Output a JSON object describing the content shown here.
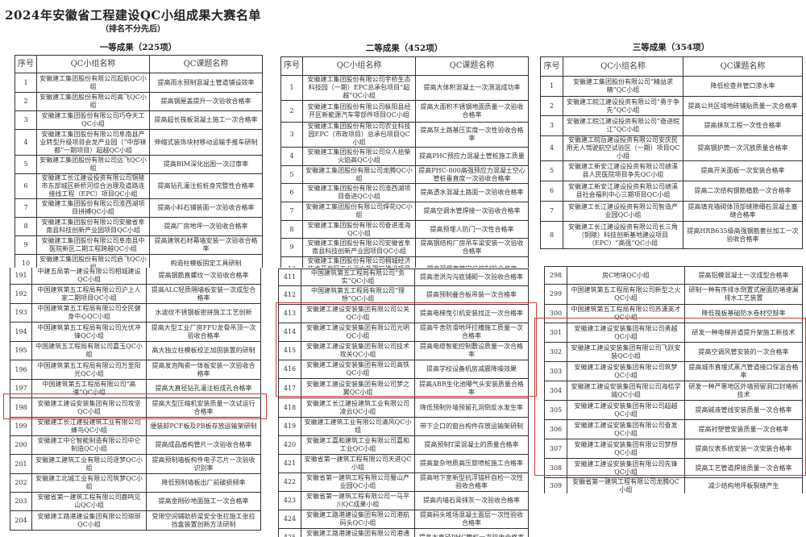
{
  "document": {
    "title": "2024年安徽省工程建设QC小组成果大赛名单",
    "subtitle": "（排名不分先后）"
  },
  "columns": {
    "index": "序号",
    "group": "QC小组名称",
    "topic": "QC课题名称"
  },
  "highlight_color": "#d23b3b",
  "first_prize": {
    "heading": "一等成果（225项）",
    "top_rows": [
      {
        "no": "1",
        "group": "安徽建工集团股份有限公司起航QC小组",
        "topic": "提高雨水预制混凝土管道铺设效率"
      },
      {
        "no": "2",
        "group": "安徽建工集团股份有限公司高飞QC小组",
        "topic": "提高钢屋盖提升一次验收合格率"
      },
      {
        "no": "3",
        "group": "安徽建工集团股份有限公司巧夺天工QC小组",
        "topic": "提高超长筏板混凝土施工一次合格率"
      },
      {
        "no": "4",
        "group": "安徽建工集团股份有限公司阜南县产业转型升级项目会龙产业园（“中部袜都”一期项目）超越QC小组",
        "topic": "伸缩式装饰块材移动运输手推车研制"
      },
      {
        "no": "5",
        "group": "安徽建工集团股份有限公司远飞QC小组",
        "topic": "提高BIM深化出图一次过审率"
      },
      {
        "no": "6",
        "group": "安徽建工长江建设投资有限公司铜陵市东部城区新桥河综合治理及道路连接线工程（EPC）项目QC小组",
        "topic": "提高钻孔灌注桩桩身完整性合格率"
      },
      {
        "no": "7",
        "group": "安徽建工集团股份有限公司淮西湖项目拼搏QC小组",
        "topic": "提高小料石铺装面一次验收合格率"
      },
      {
        "no": "8",
        "group": "安徽建工集团股份有限公司安徽省阜南县科技创新产业园项目QC小组",
        "topic": "提高厂房地坪一次验收合格率"
      },
      {
        "no": "9",
        "group": "安徽建工集团股份有限公司阜南县中医院新区二期工程跨越QC小组",
        "topic": "提高建筑石材幕墙安装一次验收合格率"
      },
      {
        "no": "10",
        "group": "安徽建工集团股份有限公司启飞QC小组",
        "topic": "构造柱模板固定工具研制"
      }
    ],
    "bottom_rows": [
      {
        "no": "191",
        "group": "中建五局第一建设有限公司相城建设QC小组",
        "topic": "提高钢筋直螺纹一次验收合格率"
      },
      {
        "no": "192",
        "group": "中国建筑第五工程局有限公司沪上人家二期项目QC小组",
        "topic": "提高ALC轻质隔墙板安装一次成型合格率"
      },
      {
        "no": "193",
        "group": "中国建筑第五工程局有限公司全民健身中心QC小组",
        "topic": "水波纹不锈钢板密拼施工工艺创新"
      },
      {
        "no": "194",
        "group": "中国建筑第五工程局有限公司光伏冲锋QC小组",
        "topic": "提高大型工业厂房FFU龙骨吊顶一次验收合格率"
      },
      {
        "no": "195",
        "group": "中国建筑五工程局有限公司嘉玉QC小组",
        "topic": "高大独立柱模板校正加固装置的研制"
      },
      {
        "no": "196",
        "group": "中国建筑第五工程局有限公司万里阳光QC小组",
        "topic": "提高发泡陶瓷一体板安装一次验收合格率"
      },
      {
        "no": "197",
        "group": "中国建筑第五工程局有限公司“高速”QC小组",
        "topic": "提高大直径钻孔灌注桩成孔合格率"
      },
      {
        "no": "198",
        "group": "安徽建工建设安装集团有限公司攻坚QC小组",
        "topic": "提高大型压缩机安装质量一次试运行合格率"
      },
      {
        "no": "199",
        "group": "安徽建工长江建投建筑工业有限公司蜂鸟QC小组",
        "topic": "便装卸PCF板及PB板存放运输架研制"
      },
      {
        "no": "200",
        "group": "安徽建工中仑智能制造有限公司中仑制造QC小组",
        "topic": "提高成品盾构管片一次验收合格率"
      },
      {
        "no": "201",
        "group": "安徽建工建筑工业有限公司逐梦QC小组",
        "topic": "提高预制墙板构件电子芯片一次验收识别率"
      },
      {
        "no": "202",
        "group": "安徽建工北城工业有限公司筑梦QC小组",
        "topic": "降低预制墙板出厂前破损频率"
      },
      {
        "no": "203",
        "group": "安徽省第一建筑工程有限公司鹿鸣见山QC小组",
        "topic": "提高金刚砂地面施工一次合格率"
      },
      {
        "no": "204",
        "group": "安徽建工路港建设集团有限公司琅琊QC小组",
        "topic": "受限空间辅助桥梁安全张拉施工张拉挡盒装置创新方法研制"
      }
    ]
  },
  "second_prize": {
    "heading": "二等成果（452项）",
    "top_rows": [
      {
        "no": "1",
        "group": "安徽建工集团股份有限公司宇桥生态科技园（一期）EPC总承包项目“超越”QC小组",
        "topic": "提高大体积混凝土一次测温成功率"
      },
      {
        "no": "2",
        "group": "安徽建工集团股份有限公司枞阳县经开区新能源汽车零部件项目QC小组",
        "topic": "提高大面积不锈钢地面质量一次验收合格率"
      },
      {
        "no": "3",
        "group": "安徽建工集团股份有限公司农业科技园EPC（市政项目）总承包项目QC小组",
        "topic": "提高灰土路基压实度一次性验收合格率"
      },
      {
        "no": "4",
        "group": "安徽建工集团股份有限公司众人拾柴火焰高QC小组",
        "topic": "提高PHC预应力混凝土管桩施工质量"
      },
      {
        "no": "5",
        "group": "安徽建工集团股份有限公司龙腾QC小组",
        "topic": "提高PHC-800高强预应力混凝土空心管桩垂直度一次验收合格率"
      },
      {
        "no": "6",
        "group": "安徽建工集团股份有限公司淮西湖项目奋进QC小组",
        "topic": "提高透水混凝土路面一次验收合格率"
      },
      {
        "no": "7",
        "group": "安徽建工集团股份有限公司焊花QC小组",
        "topic": "提高空调水管焊接一次验收合格率"
      },
      {
        "no": "8",
        "group": "安徽建工集团股份有限公司奋进淮海QC小组",
        "topic": "提高预埋人防门一次性合格率"
      },
      {
        "no": "9",
        "group": "安徽建工集团股份有限公司安徽省阜南县科技创新产业园项目QC小组",
        "topic": "提高钢结构厂房吊车梁安装一次验收合格率"
      },
      {
        "no": "10",
        "group": "安徽建工集团股份有限公司桐城经济技术开发区工业污水处理厂建设项目QC小组",
        "topic": "提高预埋套管定位控制的合格率"
      }
    ],
    "bottom_rows": [
      {
        "no": "411",
        "group": "中国建筑第五工程局有限公司“务实”QC小组",
        "topic": "提高泄洪沟沟底铺砌一次验收合格率"
      },
      {
        "no": "412",
        "group": "中国建筑第五工程局有限公司“理想”QC小组",
        "topic": "提高预制叠合板吊装一次合格率"
      },
      {
        "no": "413",
        "group": "安徽建工建设安装集团有限公司公关QC小组",
        "topic": "提高电梯曳引机安装找正一次合格率"
      },
      {
        "no": "414",
        "group": "安徽建工建设安装集团有限公司光明QC小组",
        "topic": "提高牛舍防滑地坪拉槽施工质量一次合格率"
      },
      {
        "no": "415",
        "group": "安徽建工建设安装集团有限公司技术攻关QC小组",
        "topic": "提高电缆智能控制敷设质量一次合格率"
      },
      {
        "no": "416",
        "group": "安徽建工建设安装集团有限公司高铁QC小组",
        "topic": "提高学校设备机房减震降噪效果"
      },
      {
        "no": "417",
        "group": "安徽建工建设安装集团有限公司梦之翼QC小组",
        "topic": "提高ABR生化池曝气头安装质量合格率"
      },
      {
        "no": "418",
        "group": "安徽建工长江建投建筑工业有限公司凌云QC小组",
        "topic": "降低预制外墙预留孔洞倒反水发生率"
      },
      {
        "no": "419",
        "group": "安徽建工建筑工业有限公司清风QC小组",
        "topic": "带下企口的窗台构件存放运输架研制"
      },
      {
        "no": "420",
        "group": "安徽建工嘉和建筑工业有限公司嘉和工业QC小组",
        "topic": "提高预制T梁混凝土的质量合格率"
      },
      {
        "no": "421",
        "group": "安徽省第一建筑工程有限公司天进QC小组",
        "topic": "提高复杂地质高压旋喷桩施工合格率"
      },
      {
        "no": "422",
        "group": "安徽省第一建筑工程有限公司蜀山产业园QC小组",
        "topic": "提高地下室新型抗浮锚杆自检一次性验收合格率"
      },
      {
        "no": "423",
        "group": "安徽省第一建筑工程有限公司一马平川QC成果小组",
        "topic": "提高内墙石膏抹灰一次验收合格率"
      },
      {
        "no": "424",
        "group": "安徽建工路港建设集团有限公司港航码头QC小组",
        "topic": "提高码头堆场混凝土面层一次性验收合格率"
      },
      {
        "no": "425",
        "group": "安徽建工路港建设集团有限公司港通QC小组",
        "topic": "提高大直径PHC管桩一次验收合格率"
      }
    ]
  },
  "third_prize": {
    "heading": "三等成果（354项）",
    "top_rows": [
      {
        "no": "1",
        "group": "安徽建工集团股份有限公司“精益求精”QC小组",
        "topic": "降低检查井管口渗水率"
      },
      {
        "no": "2",
        "group": "安徽建工皖江建设投资有限公司“勇于争先”QC小组",
        "topic": "提高公共区域地砖铺贴质量一次合格率"
      },
      {
        "no": "3",
        "group": "安徽建工皖江建设投资有限公司“奋进皖江”QC小组",
        "topic": "提高抹灰工程一次性合格率"
      },
      {
        "no": "4",
        "group": "安徽建工皖岳建设投资有限公司安庆民用无人驾驶航空试验区（一期）项目QC小组",
        "topic": "提高钢护筒一次沉放质量合格率"
      },
      {
        "no": "5",
        "group": "安徽建工新安江建设投资有限公司绩溪县人民医院项目争先QC小组",
        "topic": "提高开关面板一次安装合格率"
      },
      {
        "no": "6",
        "group": "安徽建工新安江建设投资有限公司绩溪县社会福利中心三期项目QC小组",
        "topic": "提高二次结构钢筋植筋一次合格率"
      },
      {
        "no": "7",
        "group": "安徽建工长江建设投资有限公司智造产业园QC小组",
        "topic": "提高填充墙砌体顶部缝隙细石混凝土塞缝合格率"
      },
      {
        "no": "8",
        "group": "安徽建工长江建设投资有限公司长三角（铜陵）科技创新基地建设项目（EPC）“高强”QC小组",
        "topic": "提高HRB635级高强钢筋套丝加工一次验收合格率"
      }
    ],
    "bottom_rows": [
      {
        "no": "298",
        "group": "房C地块QC小组",
        "topic": "提高铝模混凝土一次成型合格率"
      },
      {
        "no": "299",
        "group": "中国建筑第五工程局有限公司新型之火QC小组",
        "topic": "研制一种有序排水倒置式屋面防堵速漏排水工艺装置"
      },
      {
        "no": "300",
        "group": "中国建筑第五工程局有限公司苏潇英才QC小组",
        "topic": "降低筏板基础防水卷材空鼓率"
      },
      {
        "no": "301",
        "group": "安徽建工建设安装集团有限公司勇越QC小组",
        "topic": "研发一种电梯井道提升架施工新技术"
      },
      {
        "no": "302",
        "group": "安徽建工建设安装集团有限公司飞跃安装QC小组",
        "topic": "提高空调风管安装的一次合格率"
      },
      {
        "no": "303",
        "group": "安徽建工建设安装集团有限公司筑梦QC小组",
        "topic": "提高城市直埋式蒸汽管道接口保温合格率"
      },
      {
        "no": "304",
        "group": "安徽建工建设安装集团有限公司海桔学城QC小组",
        "topic": "研发一种严寒地区外墙预留洞口封堵新技术"
      },
      {
        "no": "305",
        "group": "安徽建工建设安装集团有限公司超越QC小组",
        "topic": "提高碱液管线安装质量一次合格率"
      },
      {
        "no": "306",
        "group": "安徽建工建设安装集团有限公司奋发QC小组",
        "topic": "提高衬塑管安装质量一次合格率"
      },
      {
        "no": "307",
        "group": "安徽建工建设安装集团有限公司梦想QC小组",
        "topic": "提高仪表系统安装一次安装合格率"
      },
      {
        "no": "308",
        "group": "安徽建工建设安装集团有限公司先锋QC小组",
        "topic": "提高工艺管道焊接质量一次合格率"
      },
      {
        "no": "309",
        "group": "安徽省第一建筑工程有限公司龙腾QC小组",
        "topic": "减少结构地坪板裂缝产生"
      }
    ]
  }
}
